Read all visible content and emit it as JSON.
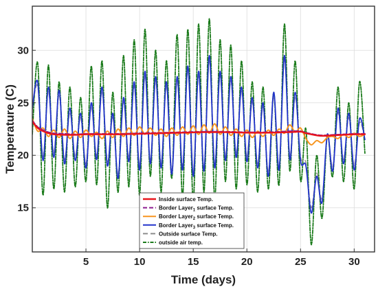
{
  "chart_data": {
    "type": "line",
    "title": "",
    "xlabel": "Time (days)",
    "ylabel": "Temperature (C)",
    "xlim": [
      0,
      31.9
    ],
    "ylim": [
      10.8,
      34.2
    ],
    "xticks": [
      5,
      10,
      15,
      20,
      25,
      30
    ],
    "yticks": [
      15,
      20,
      25,
      30
    ],
    "grid": true,
    "legend_position": "bottom-center",
    "series": [
      {
        "name": "Inside surface Temp.",
        "legend_label": "Inside surface Temp.",
        "color": "#e8141c",
        "dash": "solid",
        "x": [
          0,
          0.5,
          1,
          1.5,
          2,
          3,
          4,
          5,
          6,
          8,
          10,
          12,
          14,
          16,
          18,
          20,
          22,
          24,
          25,
          25.5,
          26,
          26.5,
          27,
          28,
          29,
          30,
          31
        ],
        "y": [
          23.2,
          22.6,
          22.3,
          22.1,
          22.0,
          21.95,
          21.95,
          22.0,
          22.0,
          22.0,
          22.05,
          22.1,
          22.15,
          22.2,
          22.2,
          22.15,
          22.15,
          22.2,
          22.25,
          22.1,
          22.0,
          21.9,
          21.85,
          21.9,
          21.95,
          22.0,
          22.0
        ]
      },
      {
        "name": "Border Layer1 surface Temp.",
        "legend_label": {
          "pre": "Border Layer",
          "sub": "1",
          "post": " surface Temp."
        },
        "color": "#8b1a8f",
        "dash": "6,3",
        "x": [
          0,
          0.5,
          1,
          1.5,
          2,
          3,
          4,
          5,
          6,
          8,
          10,
          12,
          14,
          16,
          18,
          20,
          22,
          24,
          25,
          25.5,
          26,
          26.5,
          27,
          28,
          29,
          30,
          31
        ],
        "y": [
          23.3,
          22.7,
          22.4,
          22.2,
          22.1,
          22.05,
          22.0,
          22.05,
          22.05,
          22.05,
          22.1,
          22.15,
          22.2,
          22.25,
          22.25,
          22.2,
          22.2,
          22.3,
          22.3,
          22.15,
          22.05,
          21.95,
          21.9,
          21.95,
          22.0,
          22.05,
          22.05
        ]
      },
      {
        "name": "Border Layer2 surface Temp.",
        "legend_label": {
          "pre": "Border Layer",
          "sub": "2",
          "post": " surface Temp."
        },
        "color": "#f7941d",
        "dash": "solid",
        "x": [
          0,
          0.5,
          1,
          1.5,
          2,
          2.5,
          3,
          3.5,
          4,
          4.5,
          5,
          5.5,
          6,
          6.5,
          7,
          7.5,
          8,
          8.5,
          9,
          9.5,
          10,
          10.5,
          11,
          11.5,
          12,
          12.5,
          13,
          13.5,
          14,
          14.5,
          15,
          15.5,
          16,
          16.5,
          17,
          17.5,
          18,
          18.5,
          19,
          19.5,
          20,
          20.5,
          21,
          21.5,
          22,
          22.5,
          23,
          23.5,
          24,
          24.5,
          25,
          25.5,
          26,
          26.5,
          27,
          27.5,
          28,
          28.5,
          29,
          29.5,
          30,
          30.5,
          31
        ],
        "y": [
          23.5,
          22.3,
          22.6,
          21.8,
          22.4,
          21.7,
          22.5,
          21.6,
          22.3,
          21.7,
          22.4,
          21.8,
          22.2,
          21.6,
          22.3,
          21.7,
          22.5,
          21.8,
          22.6,
          21.9,
          22.7,
          22.0,
          22.6,
          21.9,
          22.5,
          21.8,
          22.6,
          21.9,
          22.7,
          22.0,
          22.8,
          22.0,
          22.9,
          22.1,
          23.0,
          22.0,
          22.7,
          21.9,
          22.5,
          21.8,
          22.4,
          21.7,
          22.3,
          21.8,
          22.4,
          21.9,
          22.5,
          22.1,
          22.9,
          22.2,
          22.6,
          21.6,
          21.0,
          21.4,
          21.2,
          21.7,
          21.8,
          21.6,
          22.0,
          21.7,
          22.1,
          21.8,
          22.0
        ]
      },
      {
        "name": "Border Layer3 surface Temp.",
        "legend_label": {
          "pre": "Border Layer",
          "sub": "3",
          "post": " surface Temp."
        },
        "color": "#2233cc",
        "dash": "solid",
        "x": [
          0,
          0.5,
          1,
          1.5,
          2,
          2.5,
          3,
          3.5,
          4,
          4.5,
          5,
          5.5,
          6,
          6.5,
          7,
          7.5,
          8,
          8.5,
          9,
          9.5,
          10,
          10.5,
          11,
          11.5,
          12,
          12.5,
          13,
          13.5,
          14,
          14.5,
          15,
          15.5,
          16,
          16.5,
          17,
          17.5,
          18,
          18.5,
          19,
          19.5,
          20,
          20.5,
          21,
          21.5,
          22,
          22.5,
          23,
          23.5,
          24,
          24.5,
          25,
          25.5,
          26,
          26.5,
          27,
          27.5,
          28,
          28.5,
          29,
          29.5,
          30,
          30.5,
          31
        ],
        "y": [
          24.5,
          27.0,
          19.5,
          26.5,
          19.8,
          26.2,
          19.2,
          24.5,
          19.5,
          24.0,
          18.8,
          25.0,
          19.6,
          26.5,
          19.0,
          24.0,
          17.8,
          25.5,
          19.4,
          27.0,
          18.6,
          28.0,
          19.2,
          27.5,
          18.8,
          27.0,
          18.2,
          27.5,
          18.6,
          28.5,
          18.0,
          28.0,
          18.5,
          29.5,
          18.8,
          28.0,
          19.5,
          27.5,
          19.8,
          26.5,
          19.4,
          25.5,
          18.8,
          25.0,
          18.0,
          26.0,
          18.6,
          29.5,
          19.6,
          26.0,
          19.5,
          19.0,
          14.5,
          18.0,
          15.5,
          22.0,
          18.5,
          24.5,
          19.2,
          24.0,
          18.6,
          23.5,
          21.5
        ]
      },
      {
        "name": "Outside surface Temp.",
        "legend_label": "Outside surface Temp.",
        "color": "#8c8c8c",
        "dash": "7,4",
        "x": [
          0,
          0.5,
          1,
          1.5,
          2,
          2.5,
          3,
          3.5,
          4,
          4.5,
          5,
          5.5,
          6,
          6.5,
          7,
          7.5,
          8,
          8.5,
          9,
          9.5,
          10,
          10.5,
          11,
          11.5,
          12,
          12.5,
          13,
          13.5,
          14,
          14.5,
          15,
          15.5,
          16,
          16.5,
          17,
          17.5,
          18,
          18.5,
          19,
          19.5,
          20,
          20.5,
          21,
          21.5,
          22,
          22.5,
          23,
          23.5,
          24,
          24.5,
          25,
          25.5,
          26,
          26.5,
          27,
          27.5,
          28,
          28.5,
          29,
          29.5,
          30,
          30.5,
          31
        ],
        "y": [
          24.3,
          26.6,
          19.9,
          26.1,
          20.2,
          25.8,
          19.6,
          24.1,
          19.9,
          23.6,
          19.2,
          24.6,
          20.0,
          26.1,
          19.4,
          23.6,
          18.2,
          25.1,
          19.8,
          26.6,
          19.0,
          27.6,
          19.6,
          27.1,
          19.2,
          26.6,
          18.6,
          27.1,
          19.0,
          28.1,
          18.4,
          27.6,
          18.9,
          29.1,
          19.2,
          27.6,
          19.9,
          27.1,
          20.2,
          26.1,
          19.8,
          25.1,
          19.2,
          24.6,
          18.4,
          25.6,
          19.0,
          29.1,
          20.0,
          25.6,
          19.9,
          19.3,
          15.0,
          18.3,
          15.9,
          21.7,
          18.9,
          24.1,
          19.6,
          23.6,
          19.0,
          23.1,
          21.5
        ]
      },
      {
        "name": "outside air temp.",
        "legend_label": "outside air temp.",
        "color": "#1a7a1a",
        "dash": "5,2,1.5,2",
        "x": [
          0,
          0.5,
          1,
          1.5,
          2,
          2.5,
          3,
          3.5,
          4,
          4.5,
          5,
          5.5,
          6,
          6.5,
          7,
          7.5,
          8,
          8.5,
          9,
          9.5,
          10,
          10.5,
          11,
          11.5,
          12,
          12.5,
          13,
          13.5,
          14,
          14.5,
          15,
          15.5,
          16,
          16.5,
          17,
          17.5,
          18,
          18.5,
          19,
          19.5,
          20,
          20.5,
          21,
          21.5,
          22,
          22.5,
          23,
          23.5,
          24,
          24.5,
          25,
          25.5,
          26,
          26.5,
          27,
          27.5,
          28,
          28.5,
          29,
          29.5,
          30,
          30.5,
          31
        ],
        "y": [
          22.0,
          28.8,
          16.2,
          28.6,
          16.8,
          27.0,
          16.5,
          26.5,
          17.0,
          25.5,
          17.5,
          28.5,
          17.2,
          29.0,
          15.0,
          26.0,
          16.5,
          29.5,
          17.0,
          31.0,
          16.2,
          32.0,
          18.0,
          30.0,
          16.5,
          29.0,
          17.8,
          31.5,
          16.0,
          32.0,
          15.5,
          32.5,
          16.5,
          33.0,
          15.8,
          31.0,
          17.5,
          30.5,
          16.8,
          29.0,
          17.2,
          27.0,
          16.5,
          26.5,
          16.8,
          26.0,
          17.2,
          32.5,
          18.5,
          29.0,
          17.6,
          22.5,
          11.5,
          20.0,
          14.0,
          22.0,
          18.0,
          26.5,
          17.5,
          25.0,
          16.8,
          27.0,
          20.2
        ]
      }
    ]
  }
}
